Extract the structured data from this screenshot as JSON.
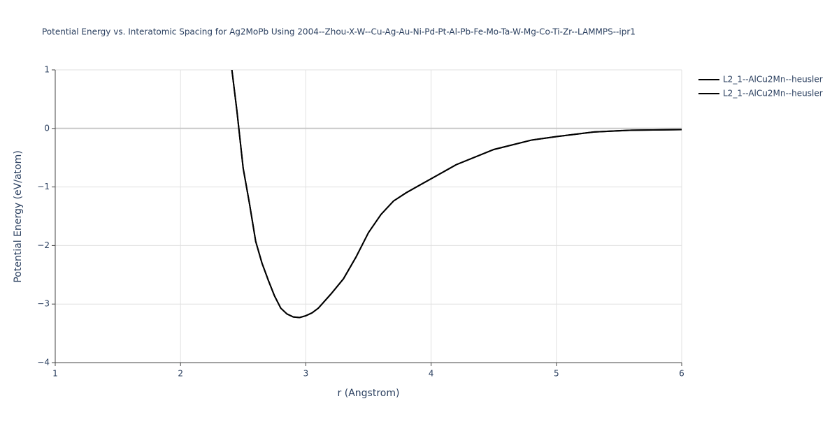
{
  "chart_data": {
    "type": "line",
    "title": "Potential Energy vs. Interatomic Spacing for Ag2MoPb Using 2004--Zhou-X-W--Cu-Ag-Au-Ni-Pd-Pt-Al-Pb-Fe-Mo-Ta-W-Mg-Co-Ti-Zr--LAMMPS--ipr1",
    "x_label": "r (Angstrom)",
    "y_label": "Potential Energy (eV/atom)",
    "x": [
      2.41,
      2.45,
      2.5,
      2.55,
      2.6,
      2.65,
      2.7,
      2.75,
      2.8,
      2.85,
      2.9,
      2.95,
      3.0,
      3.05,
      3.1,
      3.2,
      3.3,
      3.4,
      3.5,
      3.6,
      3.7,
      3.8,
      3.9,
      4.0,
      4.2,
      4.5,
      4.8,
      5.0,
      5.3,
      5.6,
      6.0
    ],
    "series": [
      {
        "name": "L2_1--AlCu2Mn--heusler",
        "color": "#000000",
        "values": [
          1.0,
          0.3,
          -0.68,
          -1.28,
          -1.93,
          -2.3,
          -2.59,
          -2.86,
          -3.07,
          -3.17,
          -3.22,
          -3.23,
          -3.2,
          -3.15,
          -3.07,
          -2.83,
          -2.57,
          -2.2,
          -1.78,
          -1.47,
          -1.24,
          -1.1,
          -0.98,
          -0.86,
          -0.62,
          -0.36,
          -0.2,
          -0.14,
          -0.06,
          -0.03,
          -0.02
        ]
      },
      {
        "name": "L2_1--AlCu2Mn--heusler",
        "color": "#000000",
        "values": [
          1.0,
          0.3,
          -0.68,
          -1.28,
          -1.93,
          -2.3,
          -2.59,
          -2.86,
          -3.07,
          -3.17,
          -3.22,
          -3.23,
          -3.2,
          -3.15,
          -3.07,
          -2.83,
          -2.57,
          -2.2,
          -1.78,
          -1.47,
          -1.24,
          -1.1,
          -0.98,
          -0.86,
          -0.62,
          -0.36,
          -0.2,
          -0.14,
          -0.06,
          -0.03,
          -0.02
        ]
      }
    ],
    "xlim": [
      1,
      6
    ],
    "xticks": [
      1,
      2,
      3,
      4,
      5,
      6
    ],
    "ylim": [
      -4,
      1
    ],
    "yticks": [
      {
        "value": -4,
        "label": "−4"
      },
      {
        "value": -3,
        "label": "−3"
      },
      {
        "value": -2,
        "label": "−2"
      },
      {
        "value": -1,
        "label": "−1"
      },
      0,
      1
    ],
    "grid": true,
    "legend": "right"
  }
}
